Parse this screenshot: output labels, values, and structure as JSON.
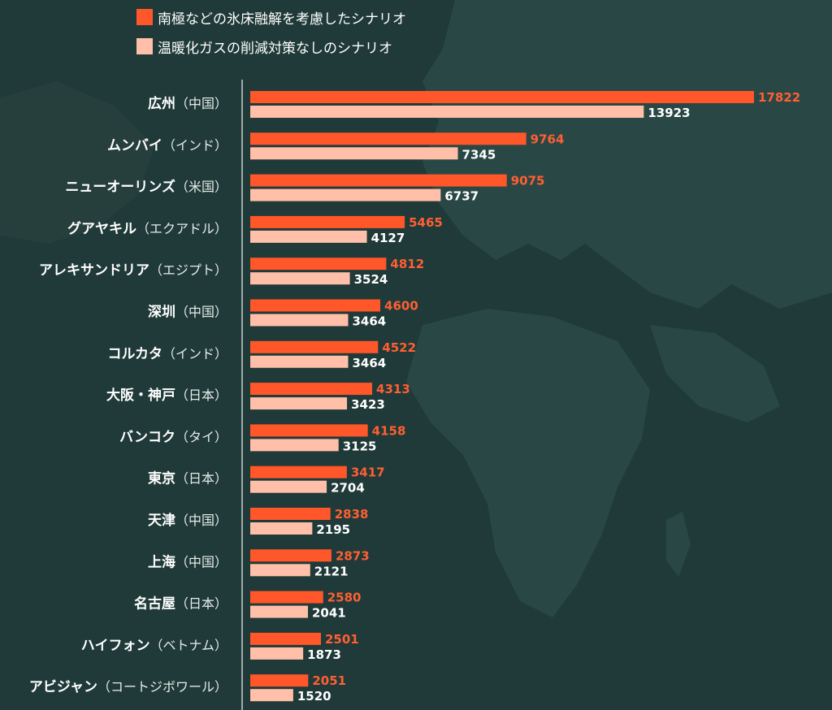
{
  "colors": {
    "background": "#1f3a38",
    "land": "#294845",
    "axis": "#c9d1cf",
    "series_a": "#ff5729",
    "series_b": "#ffbfa8",
    "label_a": "#ff5f33",
    "label_b": "#ffffff"
  },
  "legend": [
    {
      "label": "南極などの氷床融解を考慮したシナリオ",
      "color": "#ff5729"
    },
    {
      "label": "温暖化ガスの削減対策なしのシナリオ",
      "color": "#ffbfa8"
    }
  ],
  "chart_data": {
    "type": "bar",
    "orientation": "horizontal",
    "title": "",
    "xlabel": "",
    "ylabel": "",
    "xlim": [
      0,
      17822
    ],
    "grid": false,
    "legend_position": "top-left",
    "categories": [
      {
        "name": "広州",
        "sub": "（中国）"
      },
      {
        "name": "ムンバイ",
        "sub": "（インド）"
      },
      {
        "name": "ニューオーリンズ",
        "sub": "（米国）"
      },
      {
        "name": "グアヤキル",
        "sub": "（エクアドル）"
      },
      {
        "name": "アレキサンドリア",
        "sub": "（エジプト）"
      },
      {
        "name": "深圳",
        "sub": "（中国）"
      },
      {
        "name": "コルカタ",
        "sub": "（インド）"
      },
      {
        "name": "大阪・神戸",
        "sub": "（日本）"
      },
      {
        "name": "バンコク",
        "sub": "（タイ）"
      },
      {
        "name": "東京",
        "sub": "（日本）"
      },
      {
        "name": "天津",
        "sub": "（中国）"
      },
      {
        "name": "上海",
        "sub": "（中国）"
      },
      {
        "name": "名古屋",
        "sub": "（日本）"
      },
      {
        "name": "ハイフォン",
        "sub": "（ベトナム）"
      },
      {
        "name": "アビジャン",
        "sub": "（コートジボワール）"
      }
    ],
    "series": [
      {
        "name": "南極などの氷床融解を考慮したシナリオ",
        "values": [
          17822,
          9764,
          9075,
          5465,
          4812,
          4600,
          4522,
          4313,
          4158,
          3417,
          2838,
          2873,
          2580,
          2501,
          2051
        ]
      },
      {
        "name": "温暖化ガスの削減対策なしのシナリオ",
        "values": [
          13923,
          7345,
          6737,
          4127,
          3524,
          3464,
          3464,
          3423,
          3125,
          2704,
          2195,
          2121,
          2041,
          1873,
          1520
        ]
      }
    ]
  }
}
